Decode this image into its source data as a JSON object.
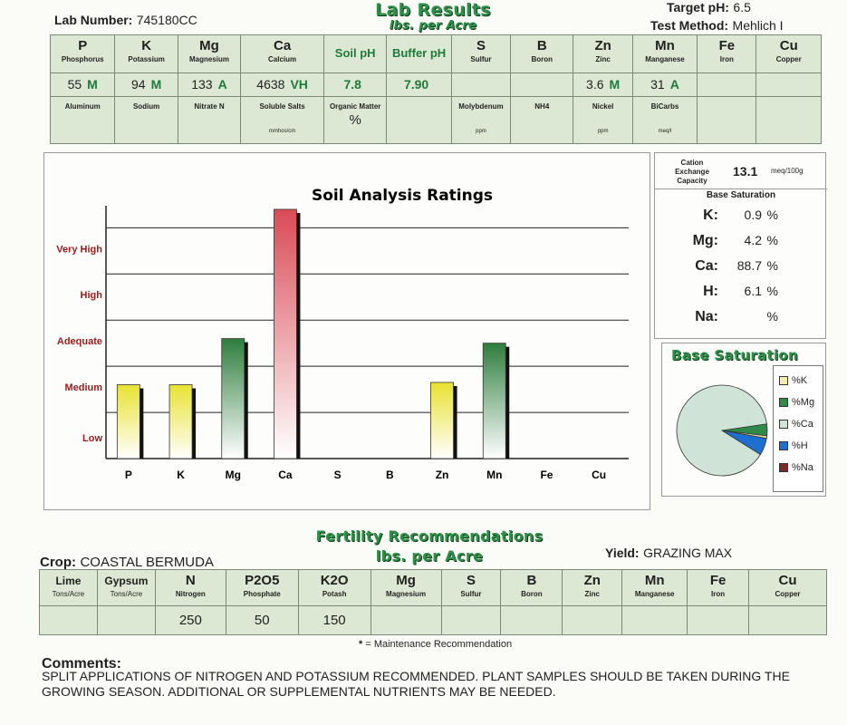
{
  "header": {
    "lab_number_label": "Lab Number:",
    "lab_number": "745180CC",
    "title": "Lab Results",
    "subtitle": "lbs. per Acre",
    "target_ph_label": "Target pH:",
    "target_ph": "6.5",
    "test_method_label": "Test Method:",
    "test_method": "Mehlich I"
  },
  "nutrients": [
    {
      "symbol": "P",
      "name": "Phosphorus",
      "value": "55",
      "rating": "M"
    },
    {
      "symbol": "K",
      "name": "Potassium",
      "value": "94",
      "rating": "M"
    },
    {
      "symbol": "Mg",
      "name": "Magnesium",
      "value": "133",
      "rating": "A"
    },
    {
      "symbol": "Ca",
      "name": "Calcium",
      "value": "4638",
      "rating": "VH"
    },
    {
      "symbol": "Soil pH",
      "name": "",
      "value": "7.8",
      "rating": ""
    },
    {
      "symbol": "Buffer pH",
      "name": "",
      "value": "7.90",
      "rating": ""
    },
    {
      "symbol": "S",
      "name": "Sulfur",
      "value": "",
      "rating": ""
    },
    {
      "symbol": "B",
      "name": "Boron",
      "value": "",
      "rating": ""
    },
    {
      "symbol": "Zn",
      "name": "Zinc",
      "value": "3.6",
      "rating": "M"
    },
    {
      "symbol": "Mn",
      "name": "Manganese",
      "value": "31",
      "rating": "A"
    },
    {
      "symbol": "Fe",
      "name": "Iron",
      "value": "",
      "rating": ""
    },
    {
      "symbol": "Cu",
      "name": "Copper",
      "value": "",
      "rating": ""
    }
  ],
  "other_tests": [
    {
      "name": "Aluminum",
      "unit": "",
      "value": ""
    },
    {
      "name": "Sodium",
      "unit": "",
      "value": ""
    },
    {
      "name": "Nitrate N",
      "unit": "",
      "value": ""
    },
    {
      "name": "Soluble Salts",
      "unit": "mmhos/cm",
      "value": ""
    },
    {
      "name": "Organic Matter",
      "unit": "",
      "value": "%"
    },
    {
      "name": "",
      "unit": "",
      "value": ""
    },
    {
      "name": "Molybdenum",
      "unit": "ppm",
      "value": ""
    },
    {
      "name": "NH4",
      "unit": "",
      "value": ""
    },
    {
      "name": "Nickel",
      "unit": "ppm",
      "value": ""
    },
    {
      "name": "BiCarbs",
      "unit": "meq/l",
      "value": ""
    },
    {
      "name": "",
      "unit": "",
      "value": ""
    },
    {
      "name": "",
      "unit": "",
      "value": ""
    }
  ],
  "cec": {
    "label_line1": "Cation",
    "label_line2": "Exchange",
    "label_line3": "Capacity",
    "value": "13.1",
    "unit": "meq/100g"
  },
  "base_saturation": {
    "heading": "Base Saturation",
    "rows": [
      {
        "label": "K:",
        "value": "0.9",
        "pct": "%"
      },
      {
        "label": "Mg:",
        "value": "4.2",
        "pct": "%"
      },
      {
        "label": "Ca:",
        "value": "88.7",
        "pct": "%"
      },
      {
        "label": "H:",
        "value": "6.1",
        "pct": "%"
      },
      {
        "label": "Na:",
        "value": "",
        "pct": "%"
      }
    ]
  },
  "chart_data": [
    {
      "type": "bar",
      "title": "Soil Analysis Ratings",
      "categories": [
        "P",
        "K",
        "Mg",
        "Ca",
        "S",
        "B",
        "Zn",
        "Mn",
        "Fe",
        "Cu"
      ],
      "values": [
        1.6,
        1.6,
        2.6,
        5.4,
        0,
        0,
        1.65,
        2.5,
        0,
        0
      ],
      "ylevels": [
        "Low",
        "Medium",
        "Adequate",
        "High",
        "Very High"
      ],
      "ylim": [
        0,
        5.4
      ],
      "bar_colors": [
        "#e8e231",
        "#e8e231",
        "#2e7d3e",
        "#d94b55",
        "",
        "",
        "#e8e231",
        "#2e7d3e",
        "",
        ""
      ],
      "grid": true
    },
    {
      "type": "pie",
      "title": "Base Saturation",
      "labels": [
        "%K",
        "%Mg",
        "%Ca",
        "%H",
        "%Na"
      ],
      "values": [
        0.9,
        4.2,
        88.7,
        6.1,
        0
      ],
      "colors": [
        "#f2ecb0",
        "#2f8a4a",
        "#cfe3d6",
        "#1e6fd0",
        "#7a2a2a"
      ],
      "legend": "right"
    }
  ],
  "fertility": {
    "title": "Fertility Recommendations",
    "subtitle": "lbs. per Acre",
    "crop_label": "Crop:",
    "crop": "COASTAL BERMUDA",
    "yield_label": "Yield:",
    "yield": "GRAZING MAX",
    "columns": [
      {
        "symbol": "Lime",
        "name": "Tons/Acre",
        "value": ""
      },
      {
        "symbol": "Gypsum",
        "name": "Tons/Acre",
        "value": ""
      },
      {
        "symbol": "N",
        "name": "Nitrogen",
        "value": "250"
      },
      {
        "symbol": "P2O5",
        "name": "Phosphate",
        "value": "50"
      },
      {
        "symbol": "K2O",
        "name": "Potash",
        "value": "150"
      },
      {
        "symbol": "Mg",
        "name": "Magnesium",
        "value": ""
      },
      {
        "symbol": "S",
        "name": "Sulfur",
        "value": ""
      },
      {
        "symbol": "B",
        "name": "Boron",
        "value": ""
      },
      {
        "symbol": "Zn",
        "name": "Zinc",
        "value": ""
      },
      {
        "symbol": "Mn",
        "name": "Manganese",
        "value": ""
      },
      {
        "symbol": "Fe",
        "name": "Iron",
        "value": ""
      },
      {
        "symbol": "Cu",
        "name": "Copper",
        "value": ""
      }
    ],
    "maintenance_note_star": "*",
    "maintenance_note": "= Maintenance Recommendation"
  },
  "comments": {
    "label": "Comments:",
    "text": "SPLIT APPLICATIONS OF NITROGEN AND POTASSIUM RECOMMENDED. PLANT SAMPLES SHOULD BE TAKEN DURING THE GROWING SEASON. ADDITIONAL OR SUPPLEMENTAL NUTRIENTS MAY BE NEEDED."
  }
}
